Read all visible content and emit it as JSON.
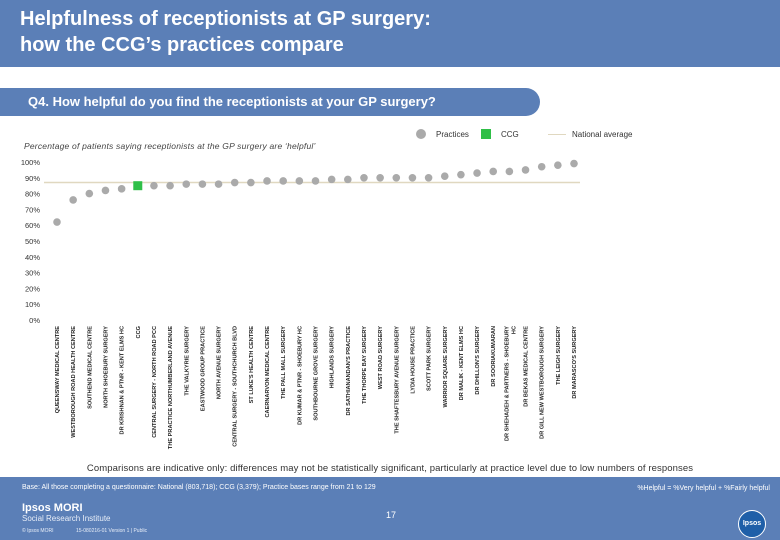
{
  "header": {
    "title": "Helpfulness of receptionists at GP surgery:\nhow the CCG’s practices compare"
  },
  "question": "Q4. How helpful do you find the receptionists at your GP surgery?",
  "legend": {
    "practices": "Practices",
    "ccg": "CCG",
    "national": "National average"
  },
  "subtitle": "Percentage of patients saying receptionists at the GP surgery are ‘helpful’",
  "colors": {
    "header": "#5b7fb7",
    "practice_dot": "#aaaaaa",
    "ccg_marker": "#2fbf47",
    "national_line": "#e0d8c0"
  },
  "chart_data": {
    "type": "scatter",
    "title": "Percentage of patients saying receptionists at the GP surgery are ‘helpful’",
    "ylim": [
      0,
      100
    ],
    "y_ticks": [
      0,
      10,
      20,
      30,
      40,
      50,
      60,
      70,
      80,
      90,
      100
    ],
    "y_tick_labels": [
      "0%",
      "10%",
      "20%",
      "30%",
      "40%",
      "50%",
      "60%",
      "70%",
      "80%",
      "90%",
      "100%"
    ],
    "national_average": 87,
    "categories": [
      "QUEENSWAY MEDICAL CENTRE",
      "WESTBOROUGH ROAD HEALTH CENTRE",
      "SOUTHEND MEDICAL CENTRE",
      "NORTH SHOEBURY SURGERY",
      "DR KRISHNAN & PTNR - KENT ELMS HC",
      "CCG",
      "CENTRAL SURGERY - NORTH ROAD PCC",
      "THE PRACTICE NORTHUMBERLAND AVENUE",
      "THE VALKYRIE SURGERY",
      "EASTWOOD GROUP PRACTICE",
      "NORTH AVENUE SURGERY",
      "CENTRAL SURGERY - SOUTHCHURCH BLVD",
      "ST LUKE'S HEALTH CENTRE",
      "CAERNARVON MEDICAL CENTRE",
      "THE PALL MALL SURGERY",
      "DR KUMAR & PTNR - SHOEBURY HC",
      "SOUTHBOURNE GROVE SURGERY",
      "HIGHLANDS SURGERY",
      "DR SATHIANANDAN'S PRACTICE",
      "THE THORPE BAY SURGERY",
      "WEST ROAD SURGERY",
      "THE SHAFTESBURY AVENUE SURGERY",
      "LYDIA HOUSE PRACTICE",
      "SCOTT PARK SURGERY",
      "WARRIOR SQUARE SURGERY",
      "DR MALIK - KENT ELMS HC",
      "DR DHILLON'S SURGERY",
      "DR SOORIAKUMARAN",
      "DR SHEHADEH & PARTNERS - SHOEBURY HC",
      "DR BEKAS MEDICAL CENTRE",
      "DR GILL NEW WESTBOROUGH SURGERY",
      "THE LEIGH SURGERY",
      "DR MARASCO'S SURGERY"
    ],
    "values": [
      62,
      76,
      80,
      82,
      83,
      85,
      85,
      85,
      86,
      86,
      86,
      87,
      87,
      88,
      88,
      88,
      88,
      89,
      89,
      90,
      90,
      90,
      90,
      90,
      91,
      92,
      93,
      94,
      94,
      95,
      97,
      98,
      99
    ],
    "ccg_index": 5,
    "ccg_value": 85
  },
  "comparison_note": "Comparisons are indicative only: differences may not be statistically significant, particularly at practice level due to low numbers of responses",
  "footer": {
    "base": "Base: All those completing a questionnaire: National (803,718); CCG (3,379); Practice bases range from 21 to 129",
    "helpful_def": "%Helpful = %Very helpful + %Fairly helpful",
    "company": "Ipsos MORI",
    "institute": "Social Research Institute",
    "copyright": "© Ipsos MORI",
    "job": "15-080216-01 Version 1 | Public",
    "page": "17",
    "logo_text": "Ipsos"
  }
}
